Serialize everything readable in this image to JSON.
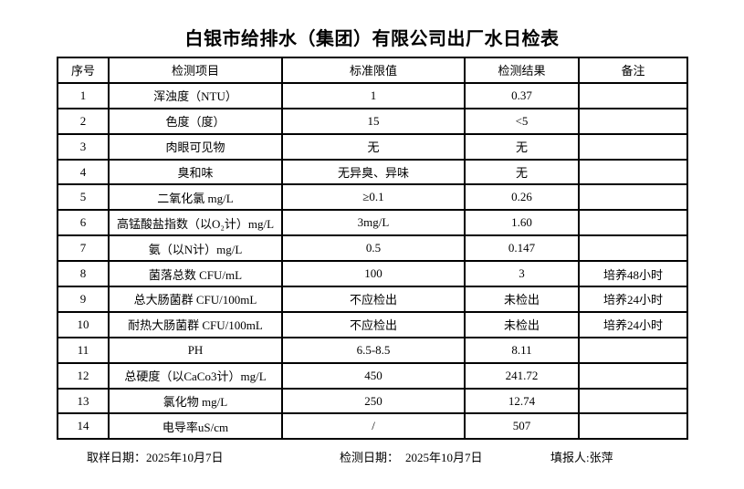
{
  "title": "白银市给排水（集团）有限公司出厂水日检表",
  "table": {
    "headers": [
      "序号",
      "检测项目",
      "标准限值",
      "检测结果",
      "备注"
    ],
    "rows": [
      [
        "1",
        "浑浊度（NTU）",
        "1",
        "0.37",
        ""
      ],
      [
        "2",
        "色度（度）",
        "15",
        "<5",
        ""
      ],
      [
        "3",
        "肉眼可见物",
        "无",
        "无",
        ""
      ],
      [
        "4",
        "臭和味",
        "无异臭、异味",
        "无",
        ""
      ],
      [
        "5",
        "二氧化氯 mg/L",
        "≥0.1",
        "0.26",
        ""
      ],
      [
        "6",
        "高锰酸盐指数（以O₂计）mg/L",
        "3mg/L",
        "1.60",
        ""
      ],
      [
        "7",
        "氨（以N计）mg/L",
        "0.5",
        "0.147",
        ""
      ],
      [
        "8",
        "菌落总数 CFU/mL",
        "100",
        "3",
        "培养48小时"
      ],
      [
        "9",
        "总大肠菌群 CFU/100mL",
        "不应检出",
        "未检出",
        "培养24小时"
      ],
      [
        "10",
        "耐热大肠菌群 CFU/100mL",
        "不应检出",
        "未检出",
        "培养24小时"
      ],
      [
        "11",
        "PH",
        "6.5-8.5",
        "8.11",
        ""
      ],
      [
        "12",
        "总硬度（以CaCo3计）mg/L",
        "450",
        "241.72",
        ""
      ],
      [
        "13",
        "氯化物 mg/L",
        "250",
        "12.74",
        ""
      ],
      [
        "14",
        "电导率uS/cm",
        "/",
        "507",
        ""
      ]
    ]
  },
  "footer": {
    "sampling_date_label": "取样日期：",
    "sampling_date_value": "2025年10月7日",
    "testing_date_label": "检测日期：",
    "testing_date_value": "2025年10月7日",
    "reporter_label": "填报人:",
    "reporter_value": "张萍"
  }
}
